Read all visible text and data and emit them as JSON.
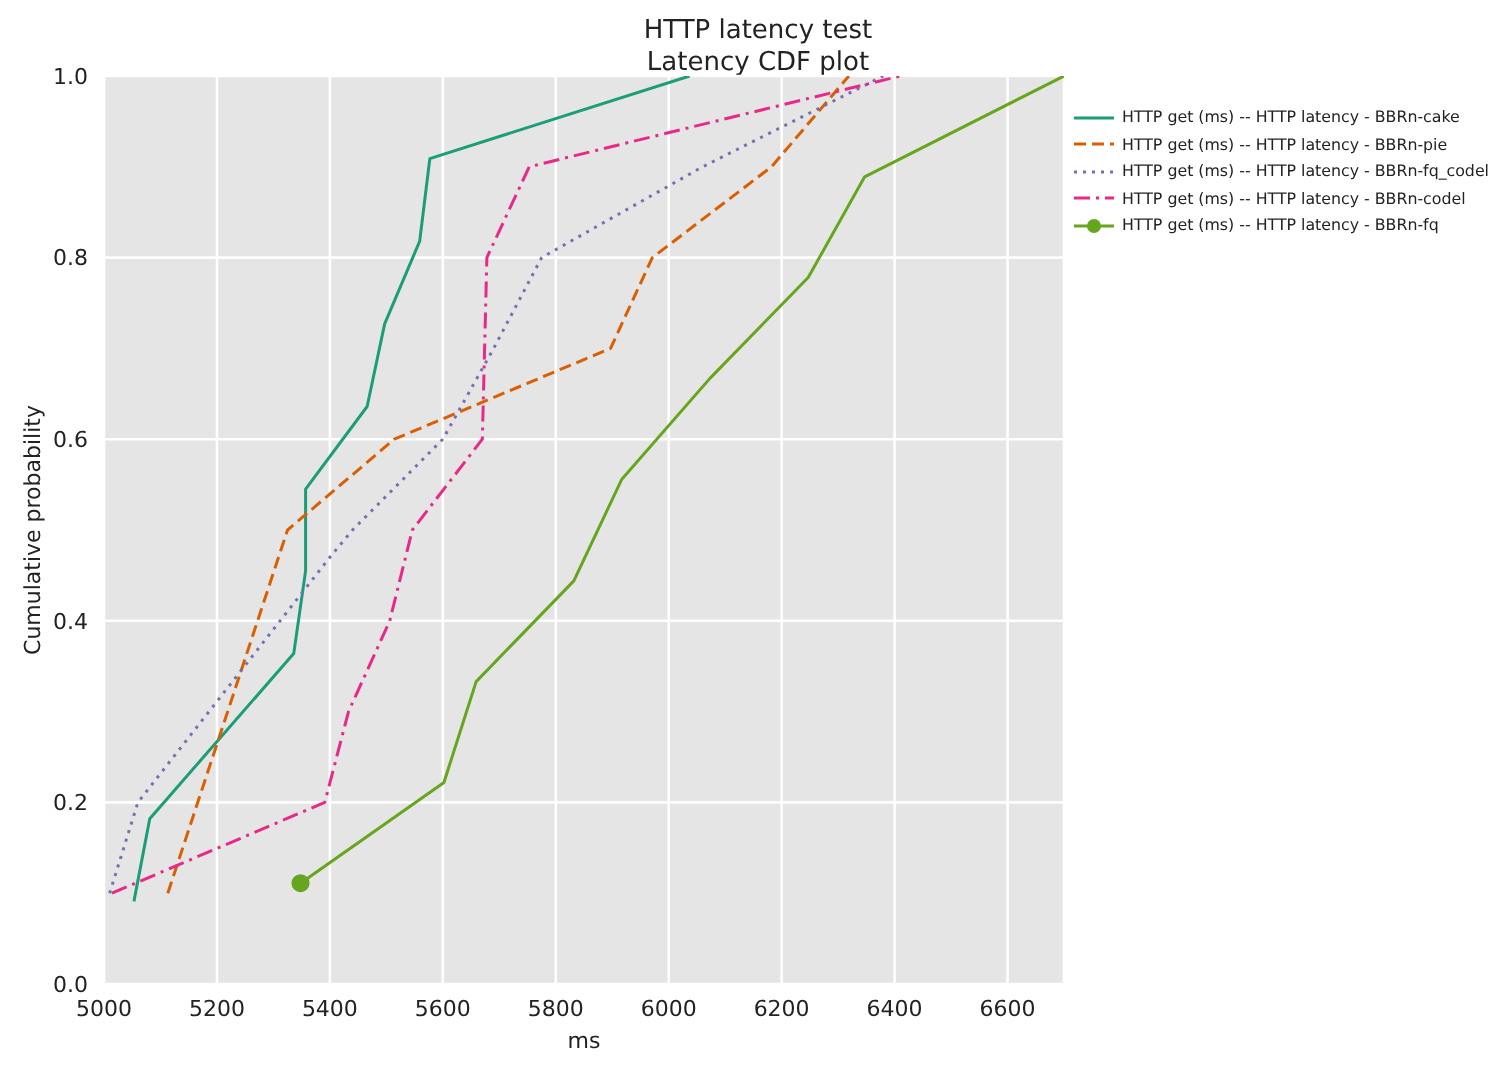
{
  "chart_data": {
    "type": "line",
    "title": "HTTP latency test",
    "subtitle": "Latency CDF plot",
    "xlabel": "ms",
    "ylabel": "Cumulative probability",
    "xlim": [
      5000,
      6700
    ],
    "xticks": [
      5000,
      5200,
      5400,
      5600,
      5800,
      6000,
      6200,
      6400,
      6600
    ],
    "ylim": [
      0,
      1
    ],
    "yticks": [
      {
        "value": 0,
        "label": "0.0"
      },
      {
        "value": 0.2,
        "label": "0.2"
      },
      {
        "value": 0.4,
        "label": "0.4"
      },
      {
        "value": 0.6,
        "label": "0.6"
      },
      {
        "value": 0.8,
        "label": "0.8"
      },
      {
        "value": 1,
        "label": "1.0"
      }
    ],
    "grid": true,
    "legend": "top right",
    "series": [
      {
        "name": "HTTP get (ms) -- HTTP latency - BBRn-cake",
        "color": "#1b9e77",
        "line_style": "solid",
        "x": [
          5053,
          5081,
          5336,
          5357,
          5357,
          5466,
          5497,
          5559,
          5577,
          6037
        ],
        "values": [
          0.091,
          0.182,
          0.364,
          0.455,
          0.545,
          0.636,
          0.727,
          0.818,
          0.909,
          1.0
        ]
      },
      {
        "name": "HTTP get (ms) -- HTTP latency - BBRn-pie",
        "color": "#d95f02",
        "line_style": "dashed",
        "x": [
          5113,
          5325,
          5514,
          5897,
          5971,
          6182,
          6319
        ],
        "values": [
          0.1,
          0.5,
          0.6,
          0.7,
          0.8,
          0.9,
          1.0
        ]
      },
      {
        "name": "HTTP get (ms) -- HTTP latency - BBRn-fq_codel",
        "color": "#7570b3",
        "line_style": "dotted",
        "x": [
          5010,
          5060,
          5400,
          5440,
          5600,
          5690,
          5775,
          6060,
          6380
        ],
        "values": [
          0.1,
          0.2,
          0.47,
          0.5,
          0.6,
          0.7,
          0.8,
          0.9,
          1.0
        ]
      },
      {
        "name": "HTTP get (ms) -- HTTP latency - BBRn-codel",
        "color": "#e7298a",
        "line_style": "dashdot",
        "x": [
          5014,
          5391,
          5433,
          5506,
          5546,
          5670,
          5678,
          5753,
          6410
        ],
        "values": [
          0.1,
          0.2,
          0.3,
          0.4,
          0.5,
          0.6,
          0.8,
          0.9,
          1.0
        ]
      },
      {
        "name": "HTTP get (ms) -- HTTP latency - BBRn-fq",
        "color": "#66a61e",
        "line_style": "solid",
        "x": [
          5348,
          5602,
          5659,
          5832,
          5917,
          6073,
          6247,
          6347,
          6700
        ],
        "values": [
          0.111,
          0.222,
          0.333,
          0.444,
          0.556,
          0.667,
          0.778,
          0.889,
          1.0
        ]
      },
      {
        "type": "scatter",
        "color": "#66a61e",
        "marker": "circle",
        "x": [
          5348
        ],
        "values": [
          0.111
        ]
      }
    ]
  }
}
